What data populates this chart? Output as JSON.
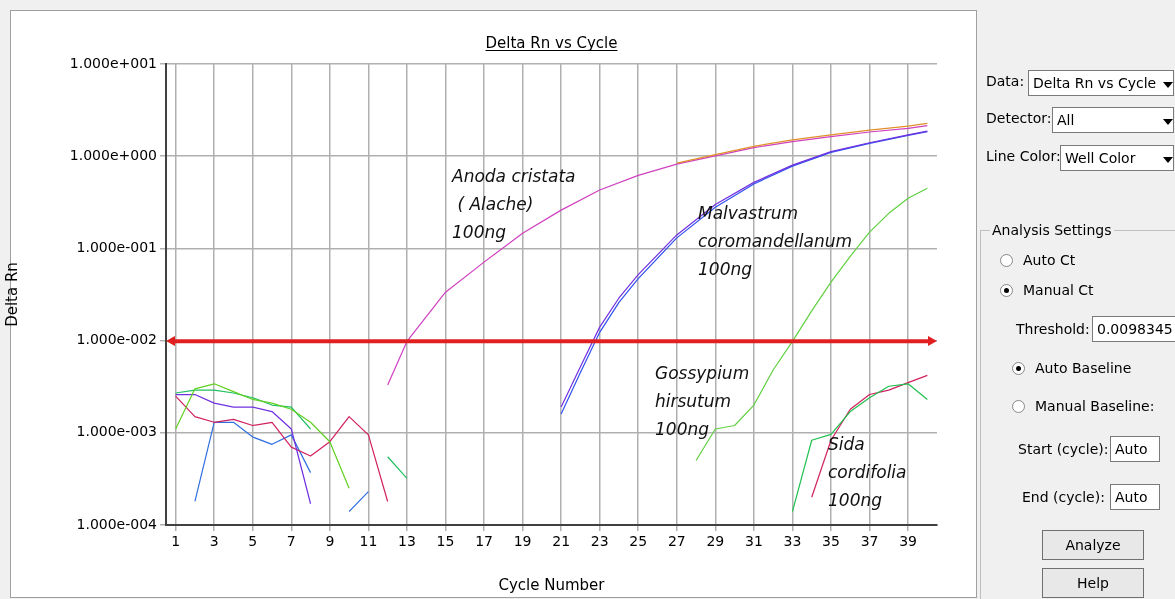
{
  "chart_data": {
    "type": "line",
    "title": "Delta Rn vs Cycle",
    "xlabel": "Cycle Number",
    "ylabel": "Delta Rn",
    "log": "y",
    "grid": true,
    "legend": false,
    "marker": "none",
    "line_style": "solid",
    "xlim": [
      0.5,
      40.5
    ],
    "xticks": [
      1,
      3,
      5,
      7,
      9,
      11,
      13,
      15,
      17,
      19,
      21,
      23,
      25,
      27,
      29,
      31,
      33,
      35,
      37,
      39
    ],
    "ylim": [
      0.0001,
      10
    ],
    "yticks": [
      {
        "value": 0.0001,
        "label": "1.000e-004"
      },
      {
        "value": 0.001,
        "label": "1.000e-003"
      },
      {
        "value": 0.01,
        "label": "1.000e-002"
      },
      {
        "value": 0.1,
        "label": "1.000e-001"
      },
      {
        "value": 1,
        "label": "1.000e+000"
      },
      {
        "value": 10,
        "label": "1.000e+001"
      }
    ],
    "series": [
      {
        "color": "#e0902a",
        "x": [
          27,
          29,
          31,
          33,
          35,
          37,
          39,
          40
        ],
        "values": [
          0.84,
          1.04,
          1.28,
          1.5,
          1.7,
          1.92,
          2.12,
          2.27
        ]
      },
      {
        "color": "#d040c0",
        "x": [
          12,
          13,
          15,
          17,
          19,
          21,
          23,
          25,
          27,
          29,
          31,
          33,
          35,
          37,
          39,
          40
        ],
        "values": [
          0.0033,
          0.0098,
          0.0335,
          0.071,
          0.146,
          0.26,
          0.43,
          0.62,
          0.82,
          1.01,
          1.24,
          1.44,
          1.63,
          1.83,
          2.0,
          2.15
        ]
      },
      {
        "color": "#7030e0",
        "x": [
          21,
          22,
          23,
          24,
          25,
          27,
          29,
          31,
          33,
          35,
          37,
          39,
          40
        ],
        "values": [
          0.0019,
          0.0052,
          0.014,
          0.029,
          0.052,
          0.14,
          0.3,
          0.52,
          0.8,
          1.12,
          1.4,
          1.7,
          1.87
        ]
      },
      {
        "color": "#3050f0",
        "x": [
          21,
          22,
          23,
          24,
          25,
          27,
          29,
          31,
          33,
          35,
          37,
          39,
          40
        ],
        "values": [
          0.0016,
          0.0045,
          0.0123,
          0.026,
          0.047,
          0.13,
          0.28,
          0.5,
          0.78,
          1.1,
          1.38,
          1.68,
          1.85
        ]
      },
      {
        "color": "#60d040",
        "x": [
          28,
          29,
          30,
          31,
          32,
          33,
          34,
          35,
          36,
          37,
          38,
          39,
          40
        ],
        "values": [
          0.0005,
          0.0011,
          0.0012,
          0.002,
          0.0048,
          0.0098,
          0.021,
          0.043,
          0.082,
          0.15,
          0.24,
          0.35,
          0.45
        ]
      },
      {
        "color": "#20c050",
        "x": [
          33,
          34,
          35,
          36,
          37,
          38,
          39,
          40
        ],
        "values": [
          0.00014,
          0.00083,
          0.00096,
          0.0017,
          0.0024,
          0.0032,
          0.0034,
          0.0023
        ]
      },
      {
        "color": "#d02060",
        "x": [
          34,
          35,
          36,
          37,
          38,
          39,
          40
        ],
        "values": [
          0.0002,
          0.00083,
          0.0018,
          0.0026,
          0.0029,
          0.0035,
          0.0042
        ]
      },
      {
        "color": "#60d020",
        "x": [
          1,
          2,
          3,
          4,
          5,
          6,
          7,
          8,
          9,
          10
        ],
        "values": [
          0.0011,
          0.003,
          0.0034,
          0.0028,
          0.0023,
          0.0021,
          0.0018,
          0.0013,
          0.0008,
          0.00025
        ]
      },
      {
        "color": "#20c060",
        "x": [
          1,
          2,
          3,
          4,
          5,
          6,
          7,
          8,
          9,
          10,
          11,
          12,
          13
        ],
        "values": [
          0.0027,
          0.0029,
          0.0029,
          0.0027,
          0.0024,
          0.002,
          0.0019,
          0.0011,
          null,
          null,
          null,
          0.00055,
          0.00032
        ]
      },
      {
        "color": "#7030e0",
        "x": [
          1,
          2,
          3,
          4,
          5,
          6,
          7,
          8
        ],
        "values": [
          0.0026,
          0.0026,
          0.0021,
          0.0019,
          0.0019,
          0.0017,
          0.0011,
          0.00017
        ]
      },
      {
        "color": "#d02060",
        "x": [
          1,
          2,
          3,
          4,
          5,
          6,
          7,
          8,
          9,
          10,
          11,
          12
        ],
        "values": [
          0.0025,
          0.0015,
          0.0013,
          0.0014,
          0.0012,
          0.0013,
          0.0007,
          0.00056,
          0.0008,
          0.0015,
          0.00095,
          0.00018
        ]
      },
      {
        "color": "#3070e0",
        "x": [
          2,
          3,
          4,
          5,
          6,
          7,
          8,
          9,
          10,
          11
        ],
        "values": [
          0.00018,
          0.0013,
          0.0013,
          0.0009,
          0.00075,
          0.00095,
          0.00037,
          null,
          0.00014,
          0.00023
        ]
      }
    ],
    "ref_lines": [
      {
        "axis": "y",
        "value": 0.0098345,
        "color": "#e02020"
      }
    ],
    "annotations": [
      "Anoda cristata\n ( Alache)\n100ng",
      "Malvastrum\ncoromandellanum\n100ng",
      "Gossypium\nhirsutum\n100ng",
      "Sida\ncordifolia\n100ng",
      "Data:",
      "Delta Rn vs Cycle",
      "Detector:",
      "All",
      "Line Color:",
      "Well Color",
      "Analysis Settings",
      "Auto Ct",
      "Manual Ct",
      "Threshold:",
      "0.0098345",
      "Auto Baseline",
      "Manual Baseline:",
      "Start (cycle):",
      "Auto",
      "End (cycle):",
      "Auto",
      "Analyze",
      "Help"
    ]
  }
}
